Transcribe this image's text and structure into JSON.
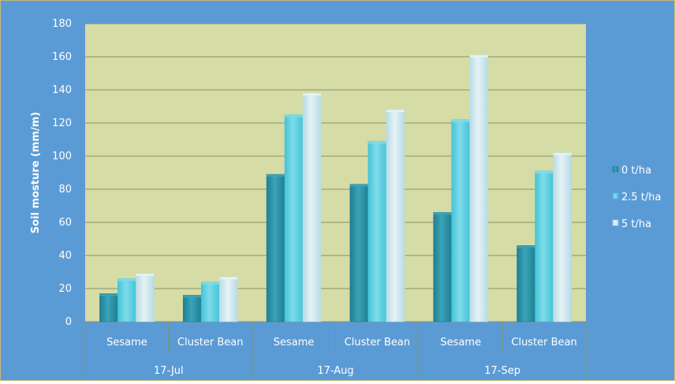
{
  "chart_data": {
    "type": "bar",
    "title": "",
    "ylabel": "Soil mosture (mm/m)",
    "xlabel": "",
    "ylim": [
      0,
      180
    ],
    "ytick_step": 20,
    "yticks": [
      "0",
      "20",
      "40",
      "60",
      "80",
      "100",
      "120",
      "140",
      "160",
      "180"
    ],
    "grid": true,
    "legend_position": "right",
    "groups": [
      "17-Jul",
      "17-Aug",
      "17-Sep"
    ],
    "categories": [
      "Sesame",
      "Cluster Bean",
      "Sesame",
      "Cluster Bean",
      "Sesame",
      "Cluster Bean"
    ],
    "category_group_index": [
      0,
      0,
      1,
      1,
      2,
      2
    ],
    "series": [
      {
        "name": "0 t/ha",
        "values": [
          17,
          16,
          89,
          83,
          66,
          46
        ]
      },
      {
        "name": "2.5 t/ha",
        "values": [
          26,
          24,
          125,
          109,
          122,
          91
        ]
      },
      {
        "name": "5 t/ha",
        "values": [
          29,
          27,
          138,
          128,
          161,
          102
        ]
      }
    ],
    "colors": {
      "background": "#5b9bd5",
      "plot_area": "#d6dca6",
      "grid": "#8a8f6a",
      "text": "#ffffff",
      "series": [
        "#1f7f93",
        "#46c3d8",
        "#b7dbe6"
      ],
      "series_light": [
        "#3aa4b8",
        "#7fdcea",
        "#e6f3f7"
      ]
    }
  }
}
